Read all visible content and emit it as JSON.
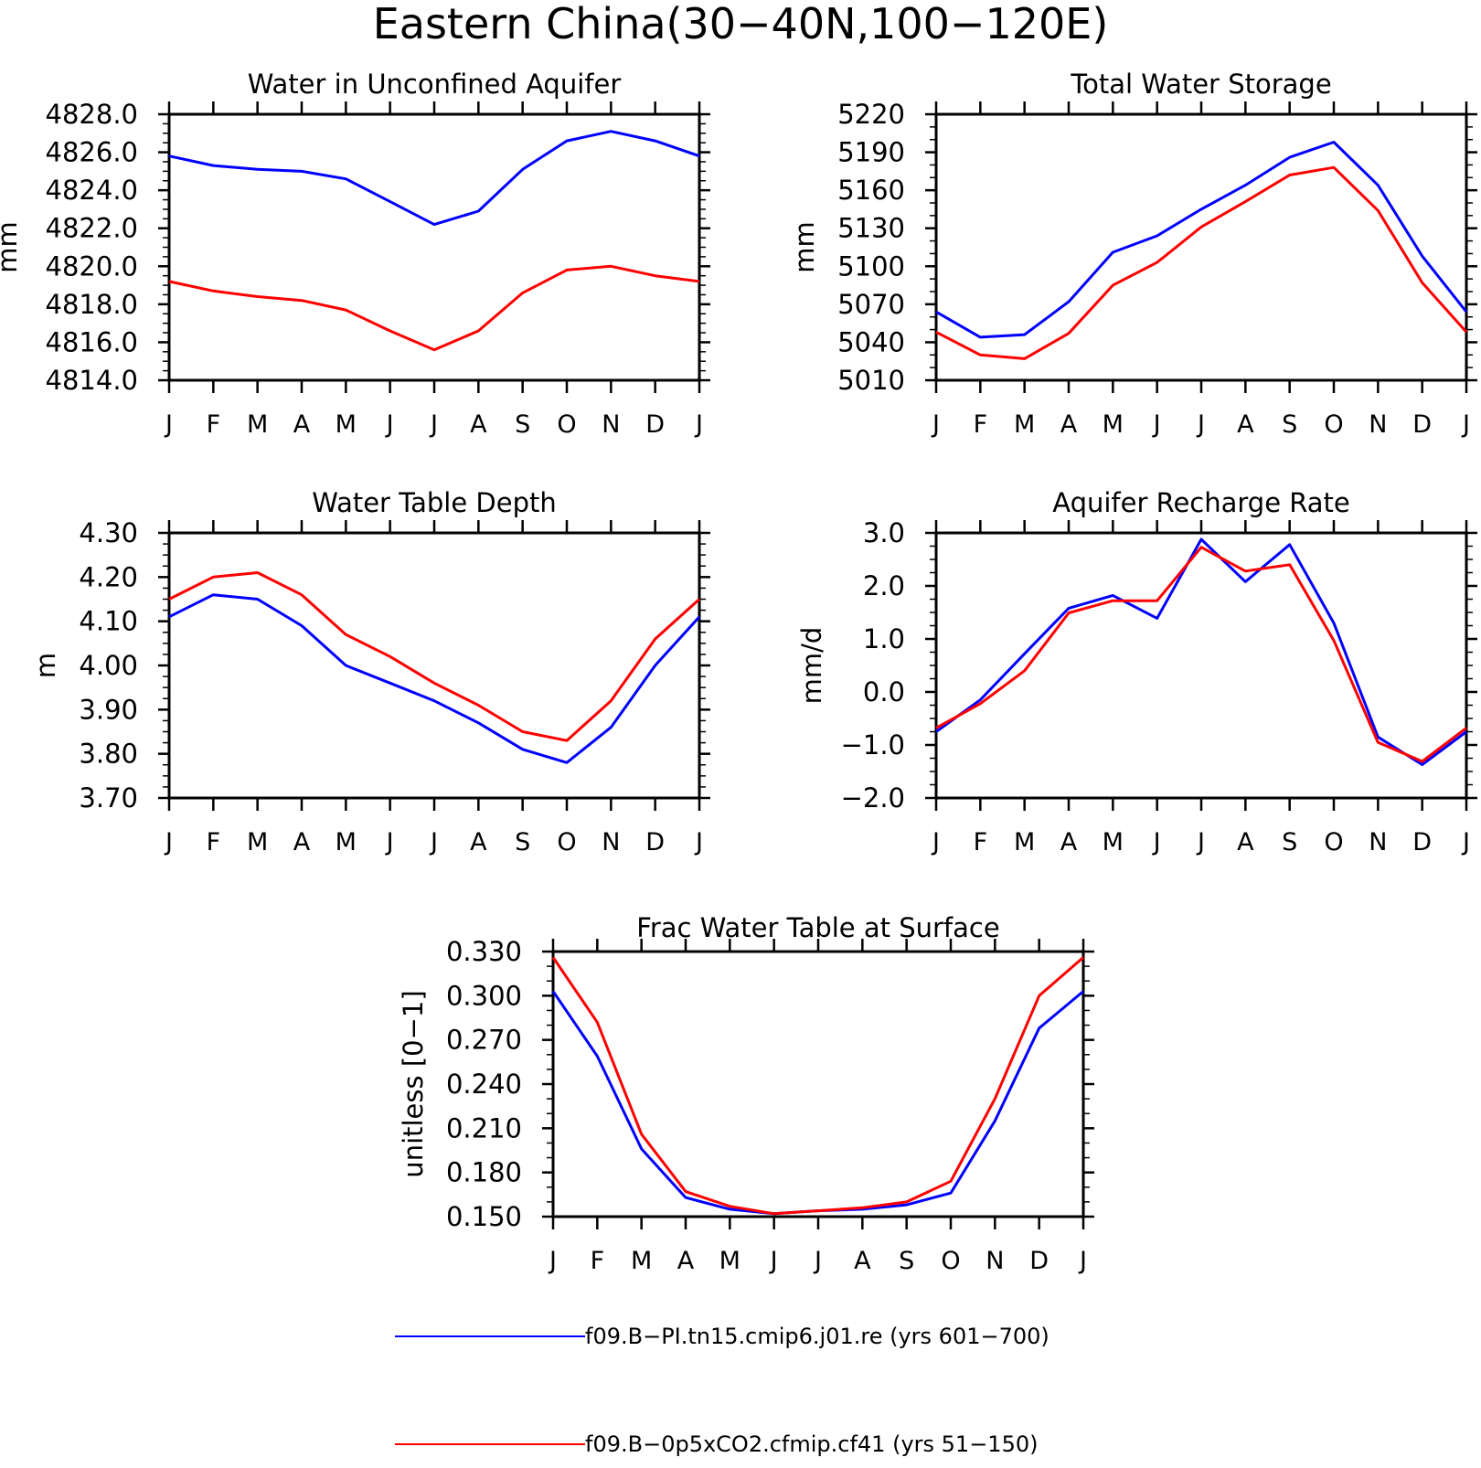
{
  "figure_title": "Eastern China(30−40N,100−120E)",
  "colors": {
    "series_blue": "#0000ff",
    "series_red": "#ff0000",
    "axis": "#000000"
  },
  "legend": [
    {
      "label": "f09.B−PI.tn15.cmip6.j01.re (yrs 601−700)",
      "color": "#0000ff"
    },
    {
      "label": "f09.B−0p5xCO2.cfmip.cf41 (yrs 51−150)",
      "color": "#ff0000"
    }
  ],
  "chart_data": [
    {
      "type": "line",
      "title": "Water in Unconfined Aquifer",
      "ylabel": "mm",
      "categories": [
        "J",
        "F",
        "M",
        "A",
        "M",
        "J",
        "J",
        "A",
        "S",
        "O",
        "N",
        "D",
        "J"
      ],
      "ylim": [
        4814.0,
        4828.0
      ],
      "yticks": [
        "4814.0",
        "4816.0",
        "4818.0",
        "4820.0",
        "4822.0",
        "4824.0",
        "4826.0",
        "4828.0"
      ],
      "grid": false,
      "series": [
        {
          "name": "f09.B−PI.tn15.cmip6.j01.re (yrs 601−700)",
          "color": "#0000ff",
          "values": [
            4825.8,
            4825.3,
            4825.1,
            4825.0,
            4824.6,
            4823.4,
            4822.2,
            4822.9,
            4825.1,
            4826.6,
            4827.1,
            4826.6,
            4825.8
          ]
        },
        {
          "name": "f09.B−0p5xCO2.cfmip.cf41 (yrs 51−150)",
          "color": "#ff0000",
          "values": [
            4819.2,
            4818.7,
            4818.4,
            4818.2,
            4817.7,
            4816.6,
            4815.6,
            4816.6,
            4818.6,
            4819.8,
            4820.0,
            4819.5,
            4819.2
          ]
        }
      ]
    },
    {
      "type": "line",
      "title": "Total Water Storage",
      "ylabel": "mm",
      "categories": [
        "J",
        "F",
        "M",
        "A",
        "M",
        "J",
        "J",
        "A",
        "S",
        "O",
        "N",
        "D",
        "J"
      ],
      "ylim": [
        5010,
        5220
      ],
      "yticks": [
        "5010",
        "5040",
        "5070",
        "5100",
        "5130",
        "5160",
        "5190",
        "5220"
      ],
      "grid": false,
      "series": [
        {
          "name": "f09.B−PI.tn15.cmip6.j01.re (yrs 601−700)",
          "color": "#0000ff",
          "values": [
            5064,
            5044,
            5046,
            5072,
            5111,
            5124,
            5145,
            5164,
            5186,
            5198,
            5164,
            5108,
            5064
          ]
        },
        {
          "name": "f09.B−0p5xCO2.cfmip.cf41 (yrs 51−150)",
          "color": "#ff0000",
          "values": [
            5048,
            5030,
            5027,
            5047,
            5085,
            5103,
            5131,
            5151,
            5172,
            5178,
            5144,
            5087,
            5048
          ]
        }
      ]
    },
    {
      "type": "line",
      "title": "Water Table Depth",
      "ylabel": "m",
      "categories": [
        "J",
        "F",
        "M",
        "A",
        "M",
        "J",
        "J",
        "A",
        "S",
        "O",
        "N",
        "D",
        "J"
      ],
      "ylim": [
        3.7,
        4.3
      ],
      "yticks": [
        "3.70",
        "3.80",
        "3.90",
        "4.00",
        "4.10",
        "4.20",
        "4.30"
      ],
      "grid": false,
      "series": [
        {
          "name": "f09.B−PI.tn15.cmip6.j01.re (yrs 601−700)",
          "color": "#0000ff",
          "values": [
            4.11,
            4.16,
            4.15,
            4.09,
            4.0,
            3.96,
            3.92,
            3.87,
            3.81,
            3.78,
            3.86,
            4.0,
            4.11
          ]
        },
        {
          "name": "f09.B−0p5xCO2.cfmip.cf41 (yrs 51−150)",
          "color": "#ff0000",
          "values": [
            4.15,
            4.2,
            4.21,
            4.16,
            4.07,
            4.02,
            3.96,
            3.91,
            3.85,
            3.83,
            3.92,
            4.06,
            4.15
          ]
        }
      ]
    },
    {
      "type": "line",
      "title": "Aquifer Recharge Rate",
      "ylabel": "mm/d",
      "categories": [
        "J",
        "F",
        "M",
        "A",
        "M",
        "J",
        "J",
        "A",
        "S",
        "O",
        "N",
        "D",
        "J"
      ],
      "ylim": [
        -2.0,
        3.0
      ],
      "yticks": [
        "−2.0",
        "−1.0",
        "0.0",
        "1.0",
        "2.0",
        "3.0"
      ],
      "grid": false,
      "series": [
        {
          "name": "f09.B−PI.tn15.cmip6.j01.re (yrs 601−700)",
          "color": "#0000ff",
          "values": [
            -0.75,
            -0.15,
            0.72,
            1.58,
            1.82,
            1.39,
            2.88,
            2.08,
            2.78,
            1.3,
            -0.85,
            -1.37,
            -0.75
          ]
        },
        {
          "name": "f09.B−0p5xCO2.cfmip.cf41 (yrs 51−150)",
          "color": "#ff0000",
          "values": [
            -0.68,
            -0.22,
            0.4,
            1.49,
            1.72,
            1.72,
            2.73,
            2.28,
            2.4,
            0.97,
            -0.95,
            -1.31,
            -0.68
          ]
        }
      ]
    },
    {
      "type": "line",
      "title": "Frac Water Table at Surface",
      "ylabel": "unitless [0−1]",
      "categories": [
        "J",
        "F",
        "M",
        "A",
        "M",
        "J",
        "J",
        "A",
        "S",
        "O",
        "N",
        "D",
        "J"
      ],
      "ylim": [
        0.15,
        0.33
      ],
      "yticks": [
        "0.150",
        "0.180",
        "0.210",
        "0.240",
        "0.270",
        "0.300",
        "0.330"
      ],
      "grid": false,
      "series": [
        {
          "name": "f09.B−PI.tn15.cmip6.j01.re (yrs 601−700)",
          "color": "#0000ff",
          "values": [
            0.303,
            0.259,
            0.196,
            0.163,
            0.155,
            0.152,
            0.154,
            0.155,
            0.158,
            0.166,
            0.215,
            0.278,
            0.303
          ]
        },
        {
          "name": "f09.B−0p5xCO2.cfmip.cf41 (yrs 51−150)",
          "color": "#ff0000",
          "values": [
            0.326,
            0.282,
            0.206,
            0.167,
            0.157,
            0.152,
            0.154,
            0.156,
            0.16,
            0.174,
            0.23,
            0.3,
            0.326
          ]
        }
      ]
    }
  ]
}
